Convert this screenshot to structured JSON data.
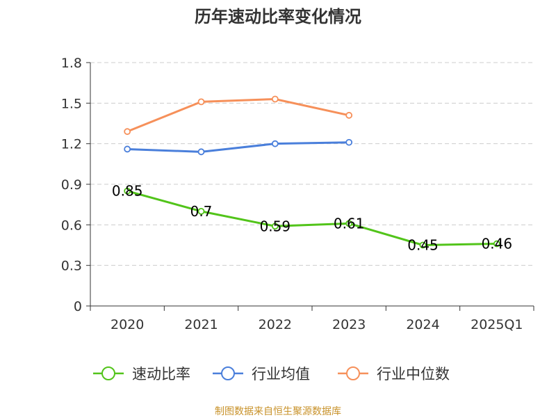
{
  "chart_data": {
    "type": "line",
    "title": "历年速动比率变化情况",
    "categories": [
      "2020",
      "2021",
      "2022",
      "2023",
      "2024",
      "2025Q1"
    ],
    "ylim": [
      0,
      1.8
    ],
    "yticks": [
      0,
      0.3,
      0.6,
      0.9,
      1.2,
      1.5,
      1.8
    ],
    "ytick_labels": [
      "0",
      "0.3",
      "0.6",
      "0.9",
      "1.2",
      "1.5",
      "1.8"
    ],
    "grid": true,
    "legend_position": "bottom",
    "series": [
      {
        "name": "速动比率",
        "color": "#52c41a",
        "values": [
          0.85,
          0.7,
          0.59,
          0.61,
          0.45,
          0.46
        ],
        "labels": [
          "0.85",
          "0.7",
          "0.59",
          "0.61",
          "0.45",
          "0.46"
        ],
        "show_labels": true
      },
      {
        "name": "行业均值",
        "color": "#4a7fdb",
        "values": [
          1.16,
          1.14,
          1.2,
          1.21,
          null,
          null
        ],
        "show_labels": false
      },
      {
        "name": "行业中位数",
        "color": "#f6905a",
        "values": [
          1.29,
          1.51,
          1.53,
          1.41,
          null,
          null
        ],
        "show_labels": false
      }
    ],
    "source": "制图数据来自恒生聚源数据库",
    "source_color": "#c8922a"
  }
}
